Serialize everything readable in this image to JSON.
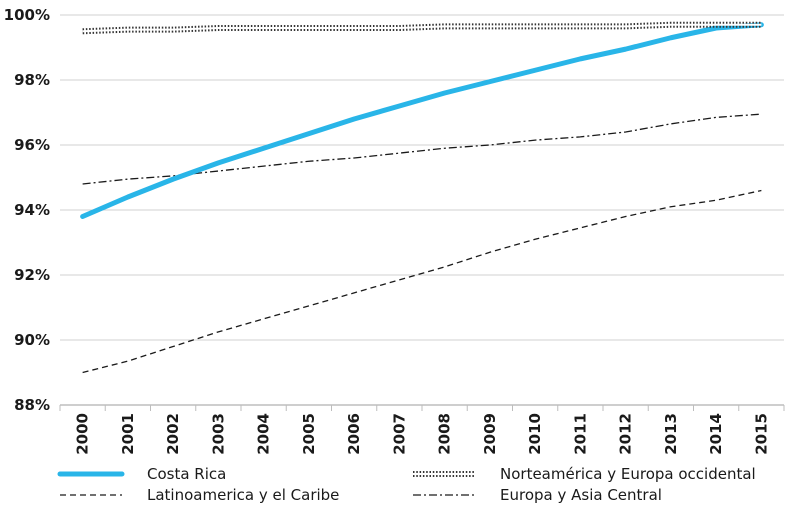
{
  "chart_data": {
    "type": "line",
    "x": [
      "2000",
      "2001",
      "2002",
      "2003",
      "2004",
      "2005",
      "2006",
      "2007",
      "2008",
      "2009",
      "2010",
      "2011",
      "2012",
      "2013",
      "2014",
      "2015"
    ],
    "ylim": [
      88,
      100
    ],
    "yticks": [
      88,
      90,
      92,
      94,
      96,
      98,
      100
    ],
    "ytick_labels": [
      "88%",
      "90%",
      "92%",
      "94%",
      "96%",
      "98%",
      "100%"
    ],
    "grid": "horizontal",
    "legend_placement": "bottom",
    "series": [
      {
        "name": "Costa Rica",
        "style": "thick-solid",
        "color": "#29b5e8",
        "values": [
          93.8,
          94.4,
          94.95,
          95.45,
          95.9,
          96.35,
          96.8,
          97.2,
          97.6,
          97.95,
          98.3,
          98.65,
          98.95,
          99.3,
          99.6,
          99.7
        ]
      },
      {
        "name": "Norteamérica y Europa occidental",
        "style": "double-outline",
        "color": "#333333",
        "values": [
          99.5,
          99.55,
          99.55,
          99.6,
          99.6,
          99.6,
          99.6,
          99.6,
          99.65,
          99.65,
          99.65,
          99.65,
          99.65,
          99.7,
          99.7,
          99.7
        ]
      },
      {
        "name": "Latinoamerica y el Caribe",
        "style": "dashed",
        "color": "#1a1a1a",
        "values": [
          89.0,
          89.35,
          89.8,
          90.25,
          90.65,
          91.05,
          91.45,
          91.85,
          92.25,
          92.7,
          93.1,
          93.45,
          93.8,
          94.1,
          94.3,
          94.6
        ]
      },
      {
        "name": "Europa y Asia Central",
        "style": "dash-dot",
        "color": "#1a1a1a",
        "values": [
          94.8,
          94.95,
          95.05,
          95.2,
          95.35,
          95.5,
          95.6,
          95.75,
          95.9,
          96.0,
          96.15,
          96.25,
          96.4,
          96.65,
          96.85,
          96.95
        ]
      }
    ]
  }
}
